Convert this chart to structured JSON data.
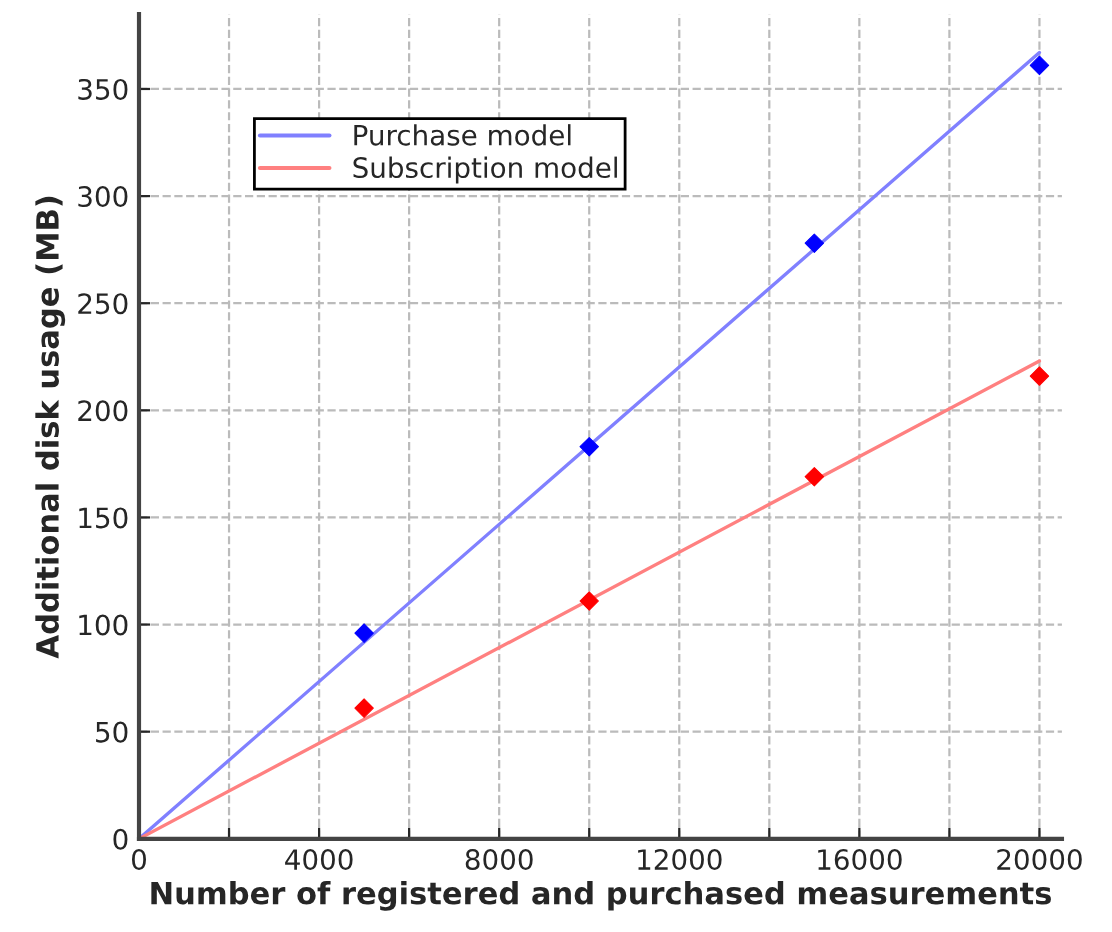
{
  "chart_data": {
    "type": "line",
    "xlabel": "Number of registered and purchased measurements",
    "ylabel": "Additional disk usage (MB)",
    "series": [
      {
        "name": "Purchase model",
        "color": "#8080ff",
        "x": [
          0,
          20000
        ],
        "values": [
          0,
          367
        ]
      },
      {
        "name": "Subscription model",
        "color": "#ff8080",
        "x": [
          0,
          20000
        ],
        "values": [
          0,
          223
        ]
      },
      {
        "type": "scatter",
        "marker": "diamond",
        "color": "#0000ff",
        "x": [
          5000,
          10000,
          15000,
          20000
        ],
        "values": [
          96,
          183,
          278,
          361
        ]
      },
      {
        "type": "scatter",
        "marker": "diamond",
        "color": "#ff0000",
        "x": [
          5000,
          10000,
          15000,
          20000
        ],
        "values": [
          61,
          111,
          169,
          216
        ]
      }
    ],
    "xlim": [
      0,
      20500
    ],
    "ylim": [
      0,
      385
    ],
    "xticks": [
      0,
      {
        "value": 2000,
        "label": null
      },
      4000,
      {
        "value": 6000,
        "label": null
      },
      8000,
      {
        "value": 10000,
        "label": null
      },
      12000,
      {
        "value": 14000,
        "label": null
      },
      16000,
      {
        "value": 18000,
        "label": null
      },
      20000
    ],
    "yticks": [
      0,
      50,
      100,
      150,
      200,
      250,
      300,
      350
    ],
    "grid": true,
    "legend": "top left",
    "line_style": "solid"
  }
}
